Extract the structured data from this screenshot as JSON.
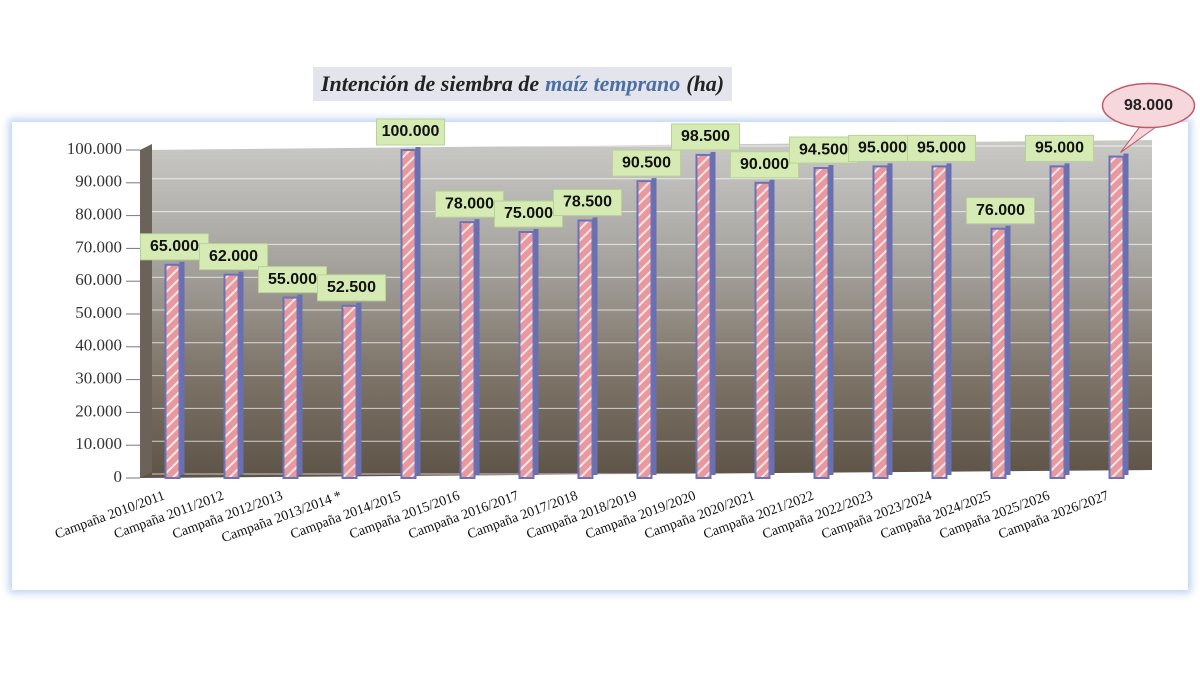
{
  "chart_data": {
    "type": "bar",
    "title_parts": [
      "Intención de siembra de",
      "maíz temprano",
      "(ha)"
    ],
    "categories": [
      "Campaña 2010/2011",
      "Campaña 2011/2012",
      "Campaña 2012/2013",
      "Campaña 2013/2014 *",
      "Campaña 2014/2015",
      "Campaña 2015/2016",
      "Campaña 2016/2017",
      "Campaña 2017/2018",
      "Campaña 2018/2019",
      "Campaña 2019/2020",
      "Campaña 2020/2021",
      "Campaña 2021/2022",
      "Campaña 2022/2023",
      "Campaña 2023/2024",
      "Campaña 2024/2025",
      "Campaña 2025/2026",
      "Campaña 2026/2027"
    ],
    "values": [
      65000,
      62000,
      55000,
      52500,
      100000,
      78000,
      75000,
      78500,
      90500,
      98500,
      90000,
      94500,
      95000,
      95000,
      76000,
      95000,
      98000
    ],
    "value_labels": [
      "65.000",
      "62.000",
      "55.000",
      "52.500",
      "100.000",
      "78.000",
      "75.000",
      "78.500",
      "90.500",
      "98.500",
      "90.000",
      "94.500",
      "95.000",
      "95.000",
      "76.000",
      "95.000",
      "98.000"
    ],
    "color": "#e8999e",
    "ylim": [
      0,
      100000
    ],
    "yticks": [
      0,
      {
        "value": 10000,
        "label": "10.000"
      },
      {
        "value": 20000,
        "label": "20.000"
      },
      {
        "value": 30000,
        "label": "30.000"
      },
      {
        "value": 40000,
        "label": "40.000"
      },
      {
        "value": 50000,
        "label": "50.000"
      },
      {
        "value": 60000,
        "label": "60.000"
      },
      {
        "value": 70000,
        "label": "70.000"
      },
      {
        "value": 80000,
        "label": "80.000"
      },
      {
        "value": 90000,
        "label": "90.000"
      },
      {
        "value": 100000,
        "label": "100.000"
      }
    ],
    "grid": true
  }
}
